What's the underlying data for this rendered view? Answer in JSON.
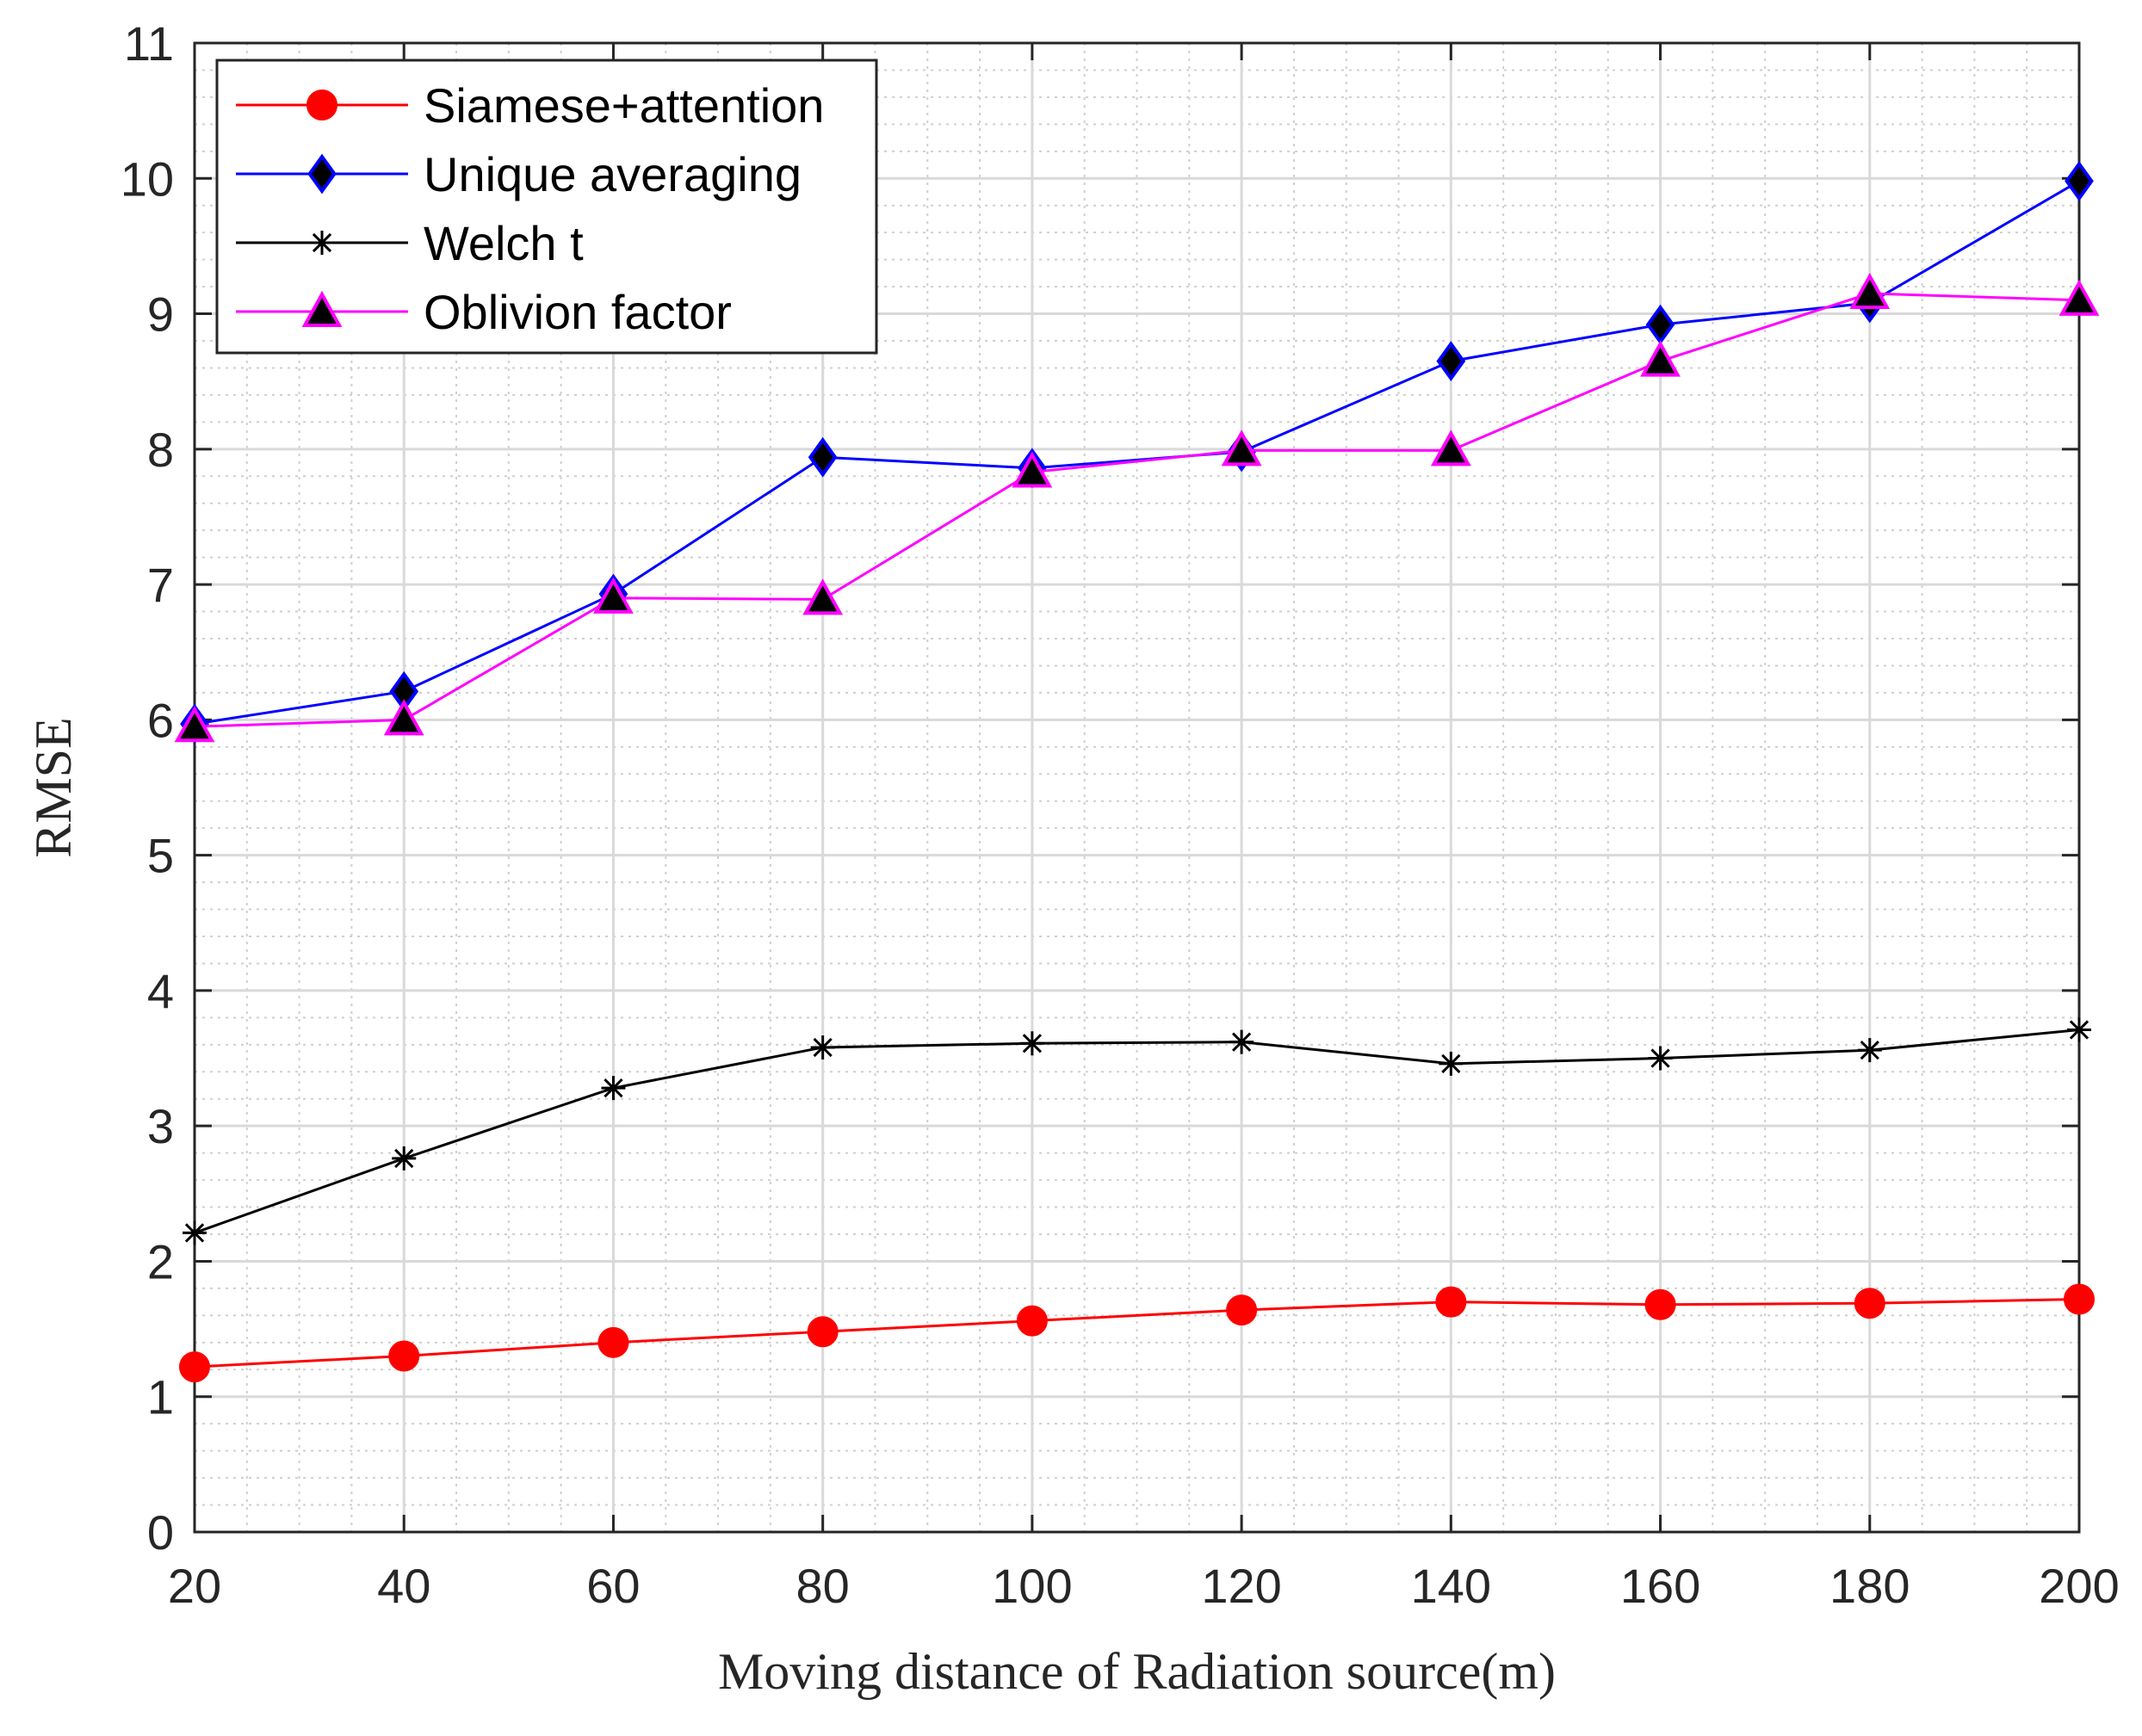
{
  "chart_data": {
    "type": "line",
    "title": "",
    "xlabel": "Moving distance of Radiation source(m)",
    "ylabel": "RMSE",
    "x": [
      20,
      40,
      60,
      80,
      100,
      120,
      140,
      160,
      180,
      200
    ],
    "xlim": [
      20,
      200
    ],
    "ylim": [
      0,
      11
    ],
    "xticks": [
      "20",
      "40",
      "60",
      "80",
      "100",
      "120",
      "140",
      "160",
      "180",
      "200"
    ],
    "yticks": [
      "0",
      "1",
      "2",
      "3",
      "4",
      "5",
      "6",
      "7",
      "8",
      "9",
      "10",
      "11"
    ],
    "grid": true,
    "minor_grid": true,
    "legend_position": "top-left",
    "series": [
      {
        "name": "Siamese+attention",
        "color": "#ff0000",
        "marker": "circle",
        "values": [
          1.22,
          1.3,
          1.4,
          1.48,
          1.56,
          1.64,
          1.7,
          1.68,
          1.69,
          1.72
        ]
      },
      {
        "name": "Unique averaging",
        "color": "#0000ff",
        "marker": "diamond",
        "values": [
          5.97,
          6.21,
          6.93,
          7.94,
          7.86,
          7.98,
          8.65,
          8.92,
          9.08,
          9.98
        ]
      },
      {
        "name": "Welch t",
        "color": "#000000",
        "marker": "asterisk",
        "values": [
          2.21,
          2.76,
          3.28,
          3.58,
          3.61,
          3.62,
          3.46,
          3.5,
          3.56,
          3.71
        ]
      },
      {
        "name": "Oblivion factor",
        "color": "#ff00ff",
        "marker": "triangle",
        "values": [
          5.95,
          6.0,
          6.9,
          6.89,
          7.83,
          7.99,
          7.99,
          8.65,
          9.15,
          9.1
        ]
      }
    ]
  }
}
